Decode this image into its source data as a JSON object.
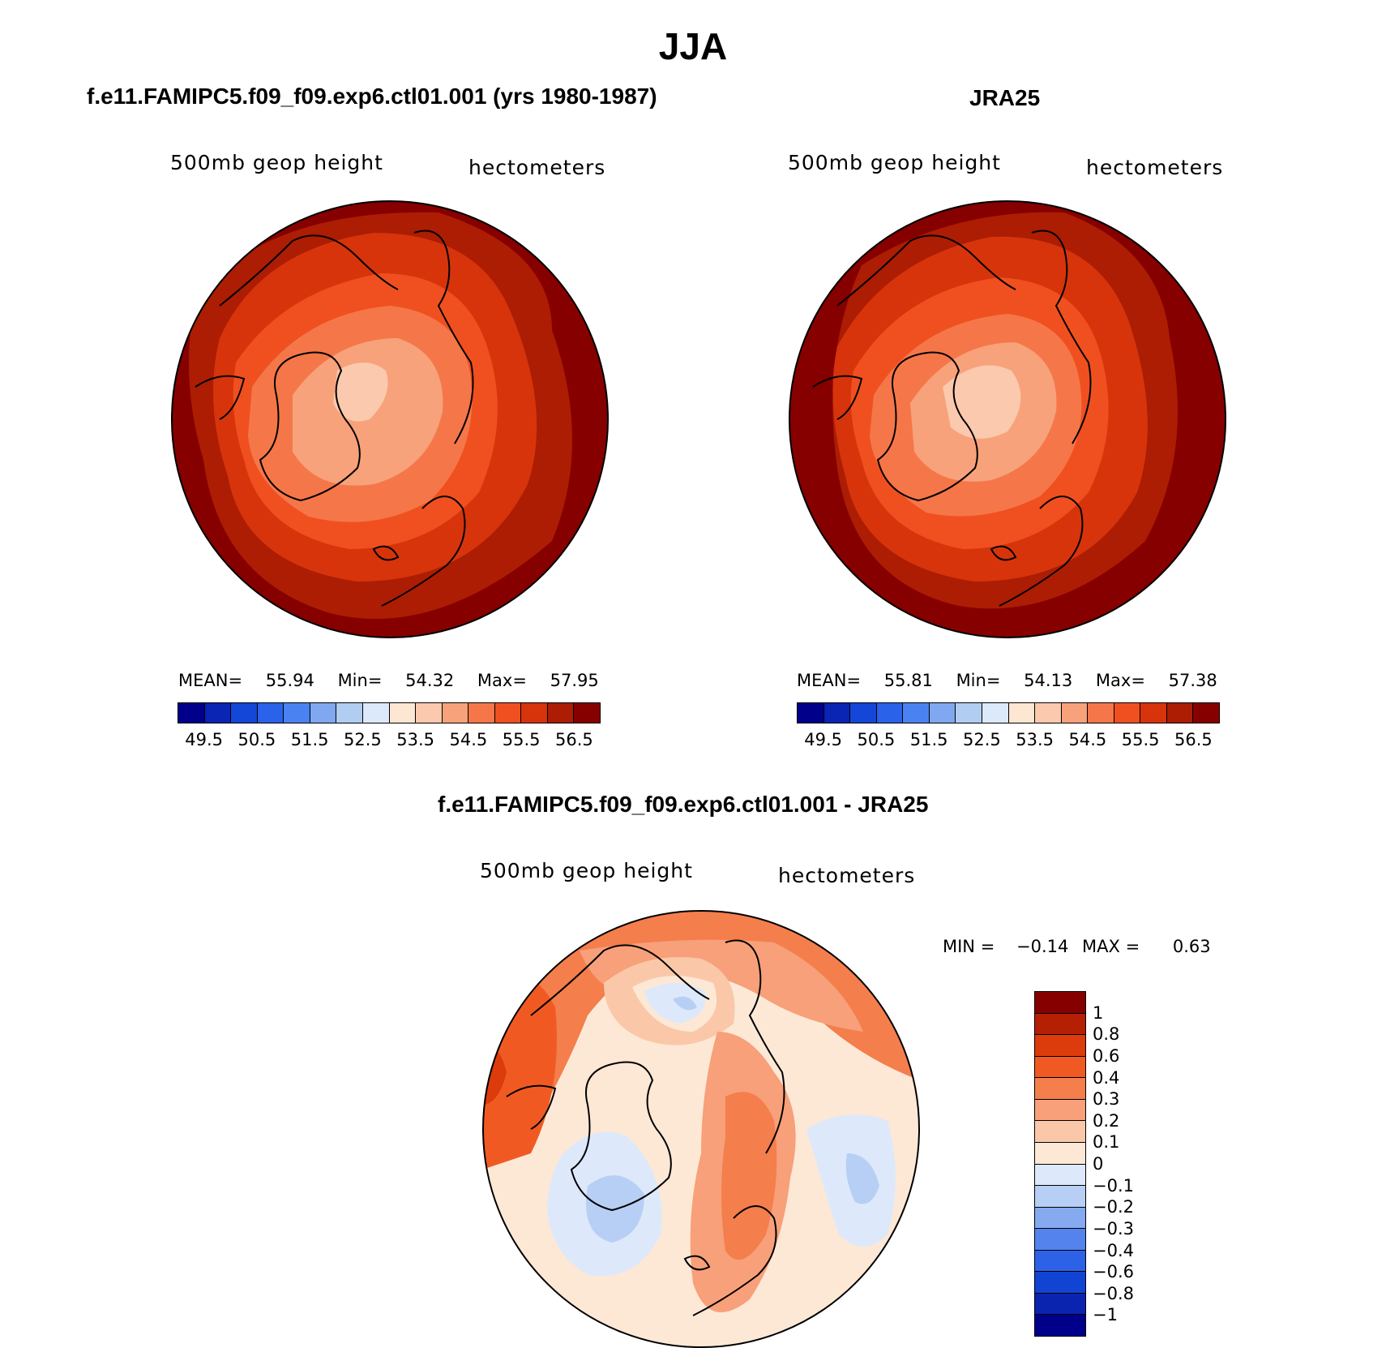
{
  "title": "JJA",
  "panels": [
    {
      "title": "f.e11.FAMIPC5.f09_f09.exp6.ctl01.001 (yrs 1980-1987)",
      "field_label": "500mb geop height",
      "units_label": "hectometers",
      "stats": {
        "mean_label": "MEAN=",
        "mean": "55.94",
        "min_label": "Min=",
        "min": "54.32",
        "max_label": "Max=",
        "max": "57.95"
      }
    },
    {
      "title": "JRA25",
      "field_label": "500mb geop height",
      "units_label": "hectometers",
      "stats": {
        "mean_label": "MEAN=",
        "mean": "55.81",
        "min_label": "Min=",
        "min": "54.13",
        "max_label": "Max=",
        "max": "57.38"
      }
    },
    {
      "title": "f.e11.FAMIPC5.f09_f09.exp6.ctl01.001 - JRA25",
      "field_label": "500mb geop height",
      "units_label": "hectometers",
      "stats": {
        "min_label": "MIN =",
        "min": "−0.14",
        "max_label": "MAX =",
        "max": "0.63"
      }
    }
  ],
  "colorbar_abs": {
    "colors": [
      "#00008b",
      "#0a24b4",
      "#1446d8",
      "#2a62ea",
      "#4a82f2",
      "#80a8f0",
      "#b2cdf2",
      "#dce9fa",
      "#fde6d2",
      "#fbc9ad",
      "#f7a27a",
      "#f57749",
      "#f0501f",
      "#d7340c",
      "#ac1d03",
      "#860000"
    ],
    "tick_labels": [
      "49.5",
      "50.5",
      "51.5",
      "52.5",
      "53.5",
      "54.5",
      "55.5",
      "56.5"
    ]
  },
  "colorbar_diff": {
    "colors": [
      "#860000",
      "#b52005",
      "#dc3b0c",
      "#f05a22",
      "#f47e4c",
      "#f7a07a",
      "#fac8a9",
      "#fde8d6",
      "#dde9fa",
      "#b7cff4",
      "#86aaf0",
      "#5483ee",
      "#2e62e6",
      "#1244d4",
      "#0a24b0",
      "#00008b"
    ],
    "tick_labels": [
      "1",
      "0.8",
      "0.6",
      "0.4",
      "0.3",
      "0.2",
      "0.1",
      "0",
      "−0.1",
      "−0.2",
      "−0.3",
      "−0.4",
      "−0.6",
      "−0.8",
      "−1"
    ]
  }
}
